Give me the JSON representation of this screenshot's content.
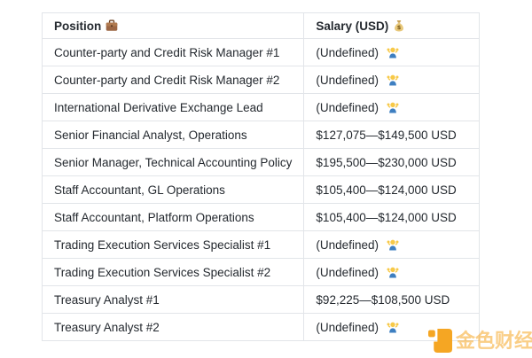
{
  "table": {
    "headers": [
      {
        "label": "Position",
        "icon": "briefcase"
      },
      {
        "label": "Salary (USD)",
        "icon": "money-bag"
      }
    ],
    "rows": [
      {
        "position": "Counter-party and Credit Risk Manager #1",
        "salary": "(Undefined)",
        "salary_icon": "shrug"
      },
      {
        "position": "Counter-party and Credit Risk Manager #2",
        "salary": "(Undefined)",
        "salary_icon": "shrug"
      },
      {
        "position": "International Derivative Exchange Lead",
        "salary": "(Undefined)",
        "salary_icon": "shrug"
      },
      {
        "position": "Senior Financial Analyst, Operations",
        "salary": "$127,075—$149,500 USD",
        "salary_icon": null
      },
      {
        "position": "Senior Manager, Technical Accounting Policy",
        "salary": "$195,500—$230,000 USD",
        "salary_icon": null
      },
      {
        "position": "Staff Accountant, GL Operations",
        "salary": "$105,400—$124,000 USD",
        "salary_icon": null
      },
      {
        "position": "Staff Accountant, Platform Operations",
        "salary": "$105,400—$124,000 USD",
        "salary_icon": null
      },
      {
        "position": "Trading Execution Services Specialist #1",
        "salary": "(Undefined)",
        "salary_icon": "shrug"
      },
      {
        "position": "Trading Execution Services Specialist #2",
        "salary": "(Undefined)",
        "salary_icon": "shrug"
      },
      {
        "position": "Treasury Analyst #1",
        "salary": "$92,225—$108,500 USD",
        "salary_icon": null
      },
      {
        "position": "Treasury Analyst #2",
        "salary": "(Undefined)",
        "salary_icon": "shrug"
      }
    ]
  },
  "watermark": {
    "text": "金色财经",
    "brand_color": "#F5A623"
  },
  "colors": {
    "table_border": "#e2e5e9",
    "text": "#24292f",
    "background": "#ffffff"
  }
}
